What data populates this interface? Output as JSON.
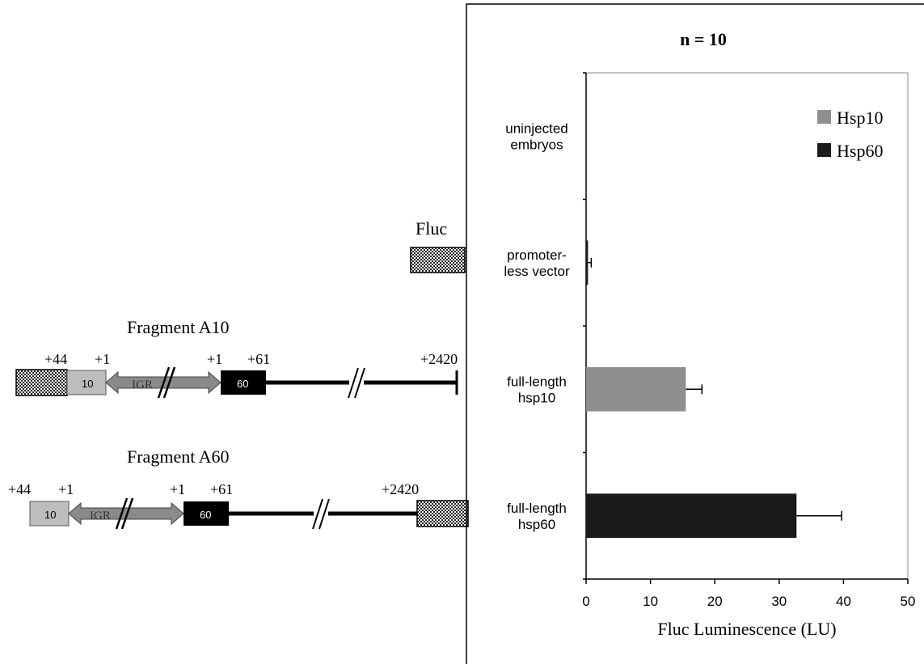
{
  "colors": {
    "fluc_reporter": "#ffffff",
    "hsp10_series": "#8f8f8f",
    "hsp60_series": "#1a1a1a",
    "gene_box_10": "#bdbdbd",
    "gene_box_60": "#000000",
    "igr_arrow": "#8a8a8a"
  },
  "diagram": {
    "fluc_label": "Fluc",
    "fragment_a10": {
      "title": "Fragment A10",
      "labels": [
        "+44",
        "+1",
        "+1",
        "+61",
        "+2420"
      ],
      "box_10": "10",
      "igr": "IGR",
      "box_60": "60"
    },
    "fragment_a60": {
      "title": "Fragment A60",
      "labels": [
        "+44",
        "+1",
        "+1",
        "+61",
        "+2420"
      ],
      "box_10": "10",
      "igr": "IGR",
      "box_60": "60"
    }
  },
  "chart_data": {
    "type": "bar",
    "orientation": "horizontal",
    "title": "n = 10",
    "xlabel": "Fluc Luminescence (LU)",
    "ylabel": "",
    "xlim": [
      0,
      50
    ],
    "xticks": [
      0,
      10,
      20,
      30,
      40,
      50
    ],
    "grid": false,
    "legend_position": "top-right",
    "categories": [
      [
        "uninjected",
        "embryos"
      ],
      [
        "promoter-",
        "less vector"
      ],
      [
        "full-length",
        "hsp10"
      ],
      [
        "full-length",
        "hsp60"
      ]
    ],
    "series": [
      {
        "name": "Hsp10",
        "color": "#8f8f8f",
        "values": [
          null,
          null,
          15.5,
          null
        ],
        "errors": [
          null,
          null,
          2.5,
          null
        ]
      },
      {
        "name": "Hsp60",
        "color": "#1a1a1a",
        "values": [
          0,
          0.3,
          null,
          32.7
        ],
        "errors": [
          0,
          0.5,
          null,
          7.0
        ]
      }
    ]
  }
}
